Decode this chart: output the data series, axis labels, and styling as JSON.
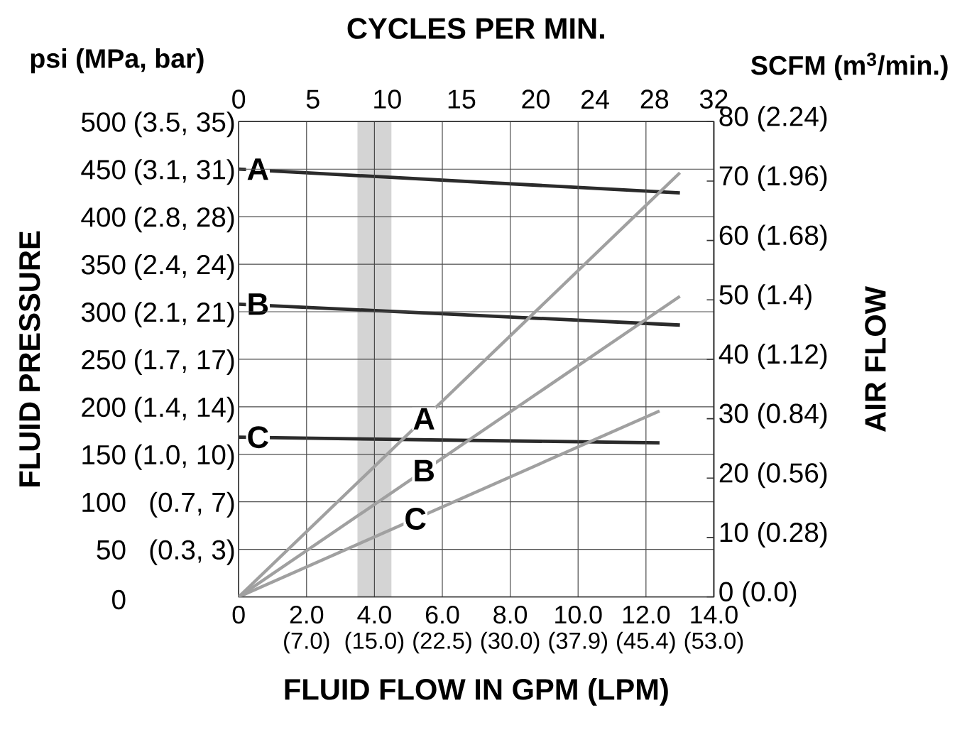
{
  "chart_data": {
    "type": "line",
    "x2label": "CYCLES PER MIN.",
    "xlabel": "FLUID FLOW IN GPM (LPM)",
    "ylabel": "FLUID PRESSURE",
    "y2label": "AIR FLOW",
    "annotations": [
      "(0.3, 3)",
      "(0.7, 7)",
      "(1.0, 10)",
      "(1.4, 14)",
      "(1.7, 17)",
      "(2.1, 21)",
      "(2.4, 24)",
      "(2.8, 28)",
      "(3.1, 31)",
      "(3.5, 35)",
      "(0.0)",
      "(0.28)",
      "(0.56)",
      "(0.84)",
      "(1.12)",
      "(1.4)",
      "(1.68)",
      "(1.96)",
      "(2.24)",
      "(7.0)",
      "(15.0)",
      "(22.5)",
      "(30.0)",
      "(37.9)",
      "(45.4)",
      "(53.0)",
      "psi (MPa, bar)",
      "SCFM (m$^{3}$/min.)"
    ],
    "xlim": [
      0,
      14
    ],
    "xticks": [
      0,
      {
        "value": 2,
        "label": "2.0"
      },
      {
        "value": 4,
        "label": "4.0"
      },
      {
        "value": 6,
        "label": "6.0"
      },
      {
        "value": 8,
        "label": "8.0"
      },
      {
        "value": 10,
        "label": "10.0"
      },
      {
        "value": 12,
        "label": "12.0"
      },
      {
        "value": 14,
        "label": "14.0"
      }
    ],
    "x2lim": [
      0,
      32
    ],
    "x2ticks": [
      0,
      5,
      10,
      15,
      20,
      24,
      28,
      32
    ],
    "ylim": [
      0,
      500
    ],
    "yticks": [
      0,
      {
        "value": 50,
        "label": "50"
      },
      {
        "value": 100,
        "label": "100"
      },
      {
        "value": 150,
        "label": "150"
      },
      {
        "value": 200,
        "label": "200"
      },
      {
        "value": 250,
        "label": "250"
      },
      {
        "value": 300,
        "label": "300"
      },
      {
        "value": 350,
        "label": "350"
      },
      {
        "value": 400,
        "label": "400"
      },
      {
        "value": 450,
        "label": "450"
      },
      {
        "value": 500,
        "label": "500"
      }
    ],
    "y2lim": [
      0,
      80
    ],
    "y2ticks": [
      {
        "value": 0,
        "label": "0"
      },
      {
        "value": 10,
        "label": "10"
      },
      {
        "value": 20,
        "label": "20"
      },
      {
        "value": 30,
        "label": "30"
      },
      {
        "value": 40,
        "label": "40"
      },
      {
        "value": 50,
        "label": "50"
      },
      {
        "value": 60,
        "label": "60"
      },
      {
        "value": 70,
        "label": "70"
      },
      {
        "value": 80,
        "label": "80"
      }
    ],
    "grid": true,
    "bands": [
      {
        "axis": "x",
        "from": 3.5,
        "to": 4.5,
        "color": "#d4d4d4"
      }
    ],
    "series": [
      {
        "name": "A",
        "color": "#2b2b2b",
        "x": [
          0,
          13
        ],
        "values": [
          450,
          425
        ]
      },
      {
        "name": "B",
        "color": "#2b2b2b",
        "x": [
          0,
          13
        ],
        "values": [
          308,
          286
        ]
      },
      {
        "name": "C",
        "color": "#2b2b2b",
        "x": [
          0,
          12.4
        ],
        "values": [
          168,
          162
        ]
      },
      {
        "name": "A",
        "color": "#a0a0a0",
        "axis": "y2",
        "x": [
          0,
          13
        ],
        "values": [
          0,
          71.4
        ]
      },
      {
        "name": "B",
        "color": "#a0a0a0",
        "axis": "y2",
        "x": [
          0,
          13
        ],
        "values": [
          0,
          50.6
        ]
      },
      {
        "name": "C",
        "color": "#a0a0a0",
        "axis": "y2",
        "x": [
          0,
          12.4
        ],
        "values": [
          0,
          31.3
        ]
      }
    ]
  }
}
